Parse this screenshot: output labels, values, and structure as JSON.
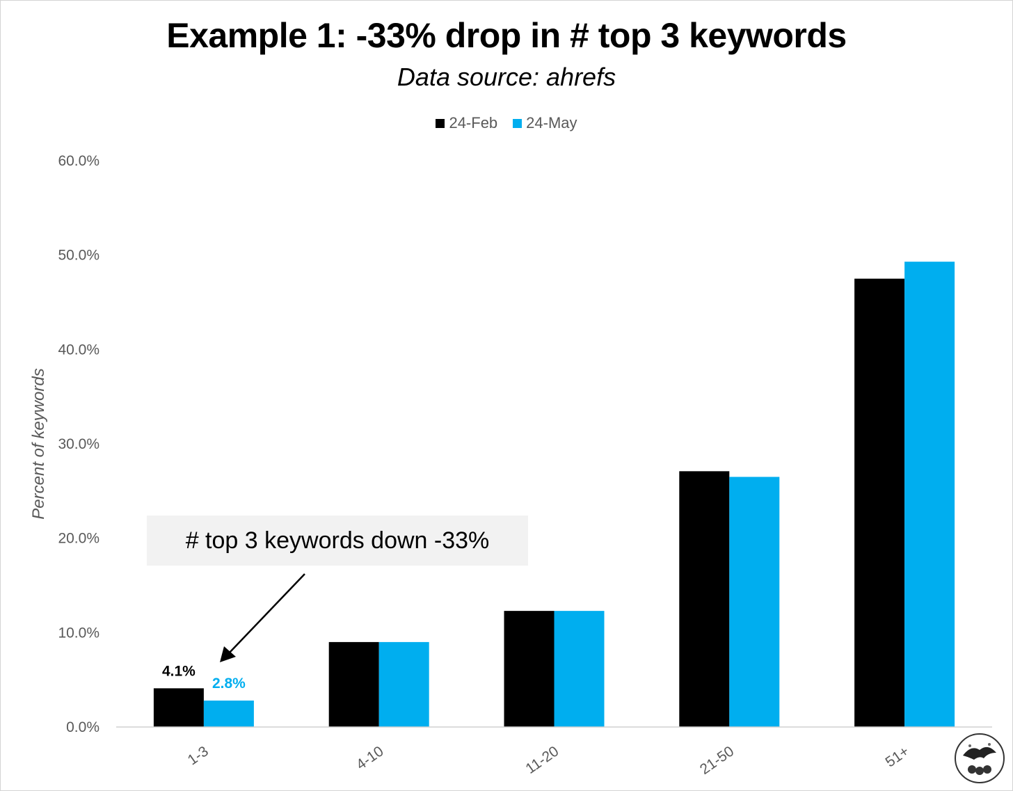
{
  "chart_data": {
    "type": "bar",
    "title": "Example 1: -33% drop in # top 3 keywords",
    "subtitle": "Data source: ahrefs",
    "ylabel": "Percent of keywords",
    "xlabel": "",
    "categories": [
      "1-3",
      "4-10",
      "11-20",
      "21-50",
      "51+"
    ],
    "series": [
      {
        "name": "24-Feb",
        "color": "#000000",
        "values": [
          4.1,
          9.0,
          12.3,
          27.1,
          47.5
        ]
      },
      {
        "name": "24-May",
        "color": "#00AEEF",
        "values": [
          2.8,
          9.0,
          12.3,
          26.5,
          49.3
        ]
      }
    ],
    "ylim": [
      0,
      60
    ],
    "yticks": [
      0,
      10,
      20,
      30,
      40,
      50,
      60
    ],
    "ytick_labels": [
      "0.0%",
      "10.0%",
      "20.0%",
      "30.0%",
      "40.0%",
      "50.0%",
      "60.0%"
    ],
    "grid": false,
    "legend_position": "top-center",
    "data_labels": [
      {
        "category": "1-3",
        "series": "24-Feb",
        "text": "4.1%"
      },
      {
        "category": "1-3",
        "series": "24-May",
        "text": "2.8%"
      }
    ],
    "annotation": {
      "text": "# top 3 keywords down -33%",
      "points_to": {
        "category": "1-3",
        "series": "24-May"
      }
    }
  }
}
